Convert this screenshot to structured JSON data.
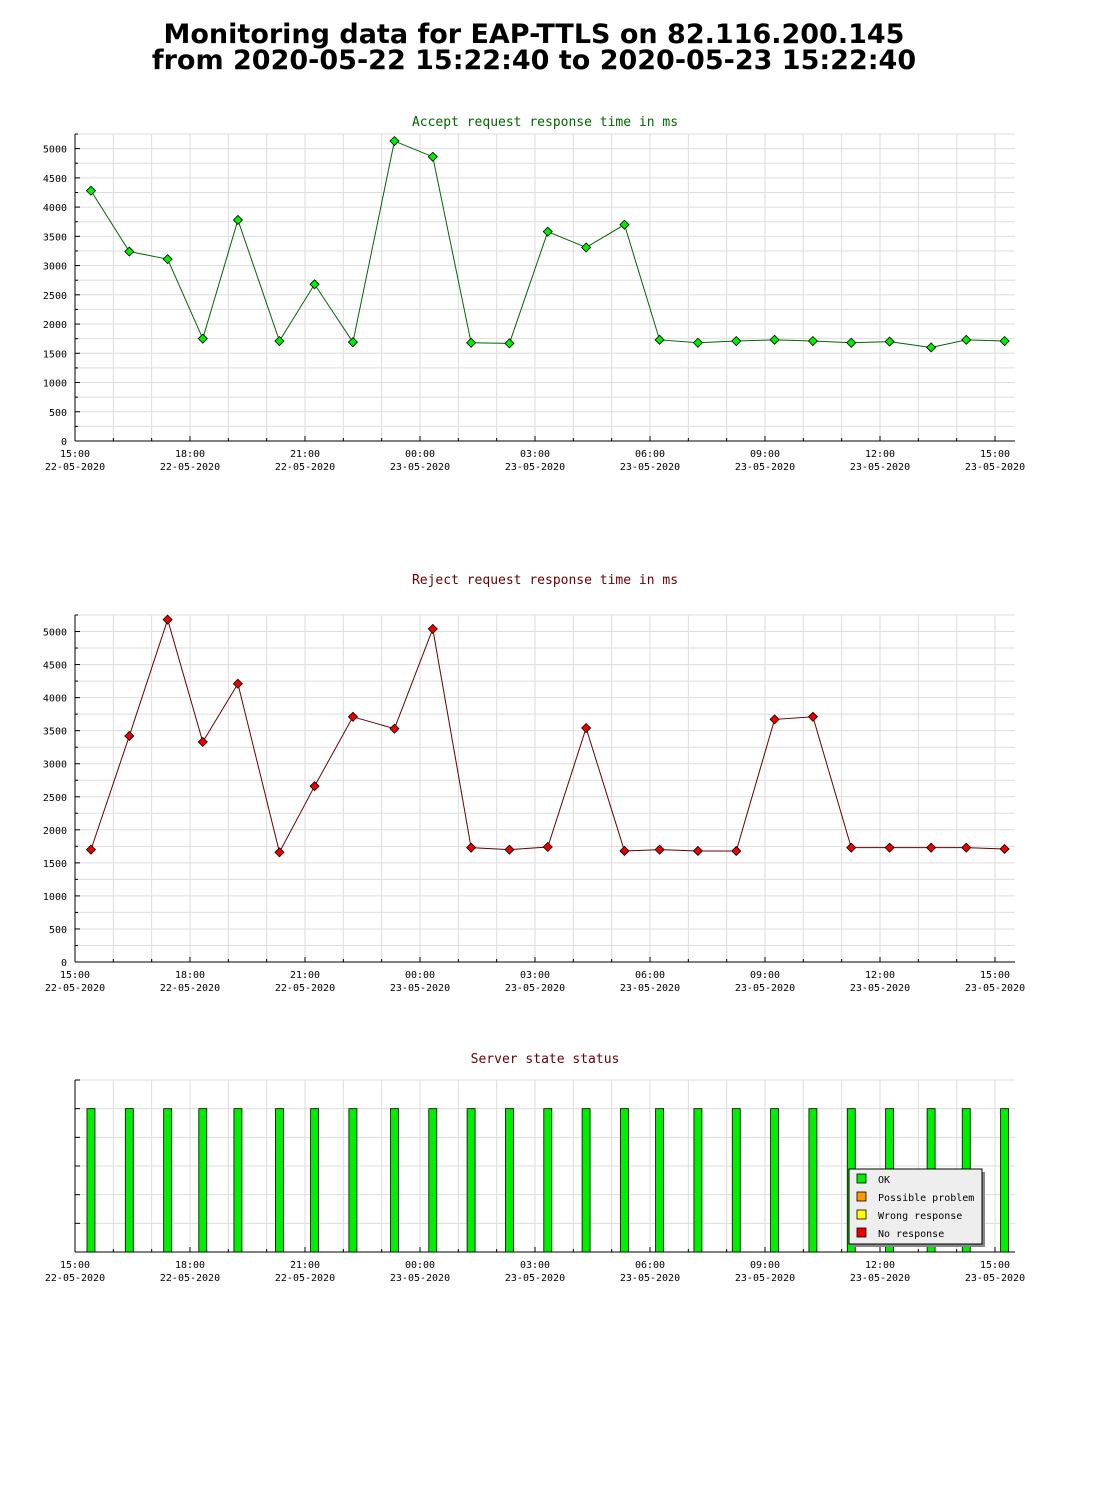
{
  "header": {
    "title_line1": "Monitoring data for EAP-TTLS on 82.116.200.145",
    "title_line2": "from 2020-05-22 15:22:40 to 2020-05-23 15:22:40"
  },
  "x_ticks": [
    {
      "time": "15:00",
      "date": "22-05-2020"
    },
    {
      "time": "18:00",
      "date": "22-05-2020"
    },
    {
      "time": "21:00",
      "date": "22-05-2020"
    },
    {
      "time": "00:00",
      "date": "23-05-2020"
    },
    {
      "time": "03:00",
      "date": "23-05-2020"
    },
    {
      "time": "06:00",
      "date": "23-05-2020"
    },
    {
      "time": "09:00",
      "date": "23-05-2020"
    },
    {
      "time": "12:00",
      "date": "23-05-2020"
    },
    {
      "time": "15:00",
      "date": "23-05-2020"
    }
  ],
  "chart_data": [
    {
      "type": "line",
      "title": "Accept request response time in ms",
      "title_color": "#006600",
      "line_color": "#006600",
      "marker_color": "#00ee00",
      "marker_shape": "diamond",
      "grid": true,
      "xlim": [
        "2020-05-22 15:00",
        "2020-05-23 15:30"
      ],
      "ylim": [
        0,
        5250
      ],
      "yticks": [
        0,
        500,
        1000,
        1500,
        2000,
        2500,
        3000,
        3500,
        4000,
        4500,
        5000
      ],
      "x": [
        "2020-05-22 15:25",
        "2020-05-22 16:25",
        "2020-05-22 17:25",
        "2020-05-22 18:20",
        "2020-05-22 19:15",
        "2020-05-22 20:20",
        "2020-05-22 21:15",
        "2020-05-22 22:15",
        "2020-05-22 23:20",
        "2020-05-23 00:20",
        "2020-05-23 01:20",
        "2020-05-23 02:20",
        "2020-05-23 03:20",
        "2020-05-23 04:20",
        "2020-05-23 05:20",
        "2020-05-23 06:15",
        "2020-05-23 07:15",
        "2020-05-23 08:15",
        "2020-05-23 09:15",
        "2020-05-23 10:15",
        "2020-05-23 11:15",
        "2020-05-23 12:15",
        "2020-05-23 13:20",
        "2020-05-23 14:15",
        "2020-05-23 15:15"
      ],
      "values": [
        4280,
        3240,
        3110,
        1750,
        3780,
        1710,
        2680,
        1690,
        5130,
        4860,
        1680,
        1670,
        3580,
        3310,
        3700,
        1730,
        1680,
        1710,
        1730,
        1710,
        1680,
        1700,
        1600,
        1730,
        1710
      ]
    },
    {
      "type": "line",
      "title": "Reject request response time in ms",
      "title_color": "#660000",
      "line_color": "#660000",
      "marker_color": "#ee0000",
      "marker_shape": "diamond",
      "grid": true,
      "xlim": [
        "2020-05-22 15:00",
        "2020-05-23 15:30"
      ],
      "ylim": [
        0,
        5250
      ],
      "yticks": [
        0,
        500,
        1000,
        1500,
        2000,
        2500,
        3000,
        3500,
        4000,
        4500,
        5000
      ],
      "x": [
        "2020-05-22 15:25",
        "2020-05-22 16:25",
        "2020-05-22 17:25",
        "2020-05-22 18:20",
        "2020-05-22 19:15",
        "2020-05-22 20:20",
        "2020-05-22 21:15",
        "2020-05-22 22:15",
        "2020-05-22 23:20",
        "2020-05-23 00:20",
        "2020-05-23 01:20",
        "2020-05-23 02:20",
        "2020-05-23 03:20",
        "2020-05-23 04:20",
        "2020-05-23 05:20",
        "2020-05-23 06:15",
        "2020-05-23 07:15",
        "2020-05-23 08:15",
        "2020-05-23 09:15",
        "2020-05-23 10:15",
        "2020-05-23 11:15",
        "2020-05-23 12:15",
        "2020-05-23 13:20",
        "2020-05-23 14:15",
        "2020-05-23 15:15"
      ],
      "values": [
        1700,
        3420,
        5180,
        3330,
        4210,
        1660,
        2660,
        3710,
        3530,
        5040,
        1730,
        1700,
        1740,
        3540,
        1680,
        1700,
        1680,
        1680,
        3670,
        3710,
        1730,
        1730,
        1730,
        1730,
        1710
      ]
    },
    {
      "type": "bar",
      "title": "Server state status",
      "title_color": "#660000",
      "xlim": [
        "2020-05-22 15:00",
        "2020-05-23 15:30"
      ],
      "x": [
        "2020-05-22 15:25",
        "2020-05-22 16:25",
        "2020-05-22 17:25",
        "2020-05-22 18:20",
        "2020-05-22 19:15",
        "2020-05-22 20:20",
        "2020-05-22 21:15",
        "2020-05-22 22:15",
        "2020-05-22 23:20",
        "2020-05-23 00:20",
        "2020-05-23 01:20",
        "2020-05-23 02:20",
        "2020-05-23 03:20",
        "2020-05-23 04:20",
        "2020-05-23 05:20",
        "2020-05-23 06:15",
        "2020-05-23 07:15",
        "2020-05-23 08:15",
        "2020-05-23 09:15",
        "2020-05-23 10:15",
        "2020-05-23 11:15",
        "2020-05-23 12:15",
        "2020-05-23 13:20",
        "2020-05-23 14:15",
        "2020-05-23 15:15"
      ],
      "status": [
        "OK",
        "OK",
        "OK",
        "OK",
        "OK",
        "OK",
        "OK",
        "OK",
        "OK",
        "OK",
        "OK",
        "OK",
        "OK",
        "OK",
        "OK",
        "OK",
        "OK",
        "OK",
        "OK",
        "OK",
        "OK",
        "OK",
        "OK",
        "OK",
        "OK"
      ],
      "legend_position": "bottom-right",
      "legend": [
        {
          "label": "OK",
          "color": "#00ee00"
        },
        {
          "label": "Possible problem",
          "color": "#ff9900"
        },
        {
          "label": "Wrong response",
          "color": "#ffff00"
        },
        {
          "label": "No response",
          "color": "#ee0000"
        }
      ]
    }
  ]
}
